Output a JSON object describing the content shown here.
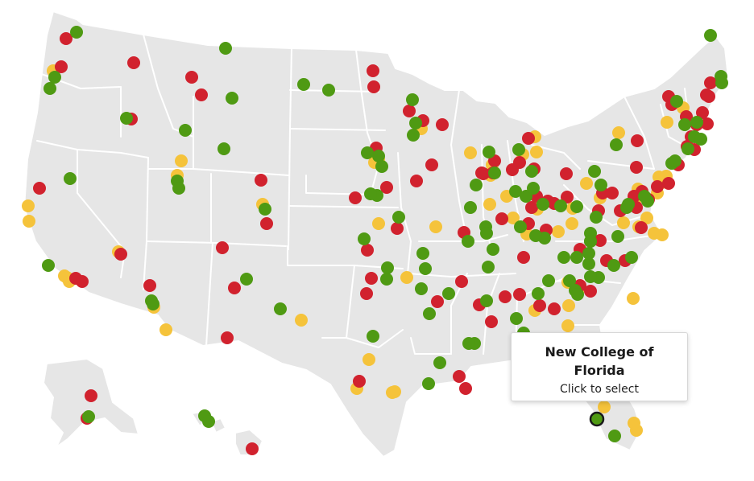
{
  "tooltip": {
    "title": "New College of Florida",
    "action": "Click to select"
  },
  "colors": {
    "land": "#e6e6e6",
    "border": "#ffffff",
    "red": "#d1222e",
    "green": "#4f9a13",
    "yellow": "#f5c33b",
    "selected_outline": "#1a1a1a"
  },
  "markers": {
    "red": 96,
    "green": 104,
    "yellow": 62,
    "selected": "New College of Florida"
  }
}
